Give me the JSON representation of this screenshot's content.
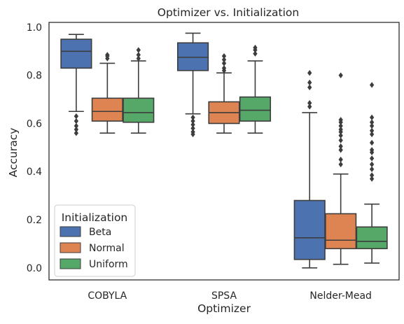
{
  "chart_data": {
    "type": "box",
    "title": "Optimizer vs. Initialization",
    "xlabel": "Optimizer",
    "ylabel": "Accuracy",
    "categories": [
      "COBYLA",
      "SPSA",
      "Nelder-Mead"
    ],
    "ylim": [
      -0.05,
      1.02
    ],
    "yticks": [
      "0.0",
      "0.2",
      "0.4",
      "0.6",
      "0.8",
      "1.0"
    ],
    "grid": false,
    "legend": {
      "title": "Initialization",
      "placement": "lower-left"
    },
    "series": [
      {
        "name": "Beta",
        "color": "#4c72b0",
        "boxes": [
          {
            "q1": 0.83,
            "median": 0.9,
            "q3": 0.95,
            "whisker_low": 0.65,
            "whisker_high": 0.97,
            "outliers": [
              0.63,
              0.61,
              0.59,
              0.575,
              0.56
            ]
          },
          {
            "q1": 0.82,
            "median": 0.875,
            "q3": 0.935,
            "whisker_low": 0.64,
            "whisker_high": 0.975,
            "outliers": [
              0.625,
              0.61,
              0.595,
              0.58,
              0.565,
              0.555
            ]
          },
          {
            "q1": 0.035,
            "median": 0.125,
            "q3": 0.28,
            "whisker_low": 0.0,
            "whisker_high": 0.645,
            "outliers": [
              0.67,
              0.685,
              0.75,
              0.77,
              0.81
            ]
          }
        ]
      },
      {
        "name": "Normal",
        "color": "#dd8452",
        "boxes": [
          {
            "q1": 0.61,
            "median": 0.65,
            "q3": 0.705,
            "whisker_low": 0.56,
            "whisker_high": 0.85,
            "outliers": [
              0.87,
              0.88,
              0.885
            ]
          },
          {
            "q1": 0.6,
            "median": 0.645,
            "q3": 0.69,
            "whisker_low": 0.56,
            "whisker_high": 0.81,
            "outliers": [
              0.82,
              0.83,
              0.85,
              0.865,
              0.88
            ]
          },
          {
            "q1": 0.08,
            "median": 0.115,
            "q3": 0.225,
            "whisker_low": 0.015,
            "whisker_high": 0.39,
            "outliers": [
              0.43,
              0.45,
              0.49,
              0.505,
              0.53,
              0.55,
              0.565,
              0.575,
              0.59,
              0.605,
              0.615,
              0.8
            ]
          }
        ]
      },
      {
        "name": "Uniform",
        "color": "#55a868",
        "boxes": [
          {
            "q1": 0.605,
            "median": 0.645,
            "q3": 0.705,
            "whisker_low": 0.56,
            "whisker_high": 0.86,
            "outliers": [
              0.87,
              0.885,
              0.905
            ]
          },
          {
            "q1": 0.61,
            "median": 0.655,
            "q3": 0.71,
            "whisker_low": 0.56,
            "whisker_high": 0.86,
            "outliers": [
              0.89,
              0.905,
              0.915
            ]
          },
          {
            "q1": 0.08,
            "median": 0.11,
            "q3": 0.17,
            "whisker_low": 0.02,
            "whisker_high": 0.265,
            "outliers": [
              0.37,
              0.385,
              0.41,
              0.43,
              0.455,
              0.48,
              0.49,
              0.52,
              0.555,
              0.57,
              0.59,
              0.605,
              0.625,
              0.76
            ]
          }
        ]
      }
    ]
  }
}
